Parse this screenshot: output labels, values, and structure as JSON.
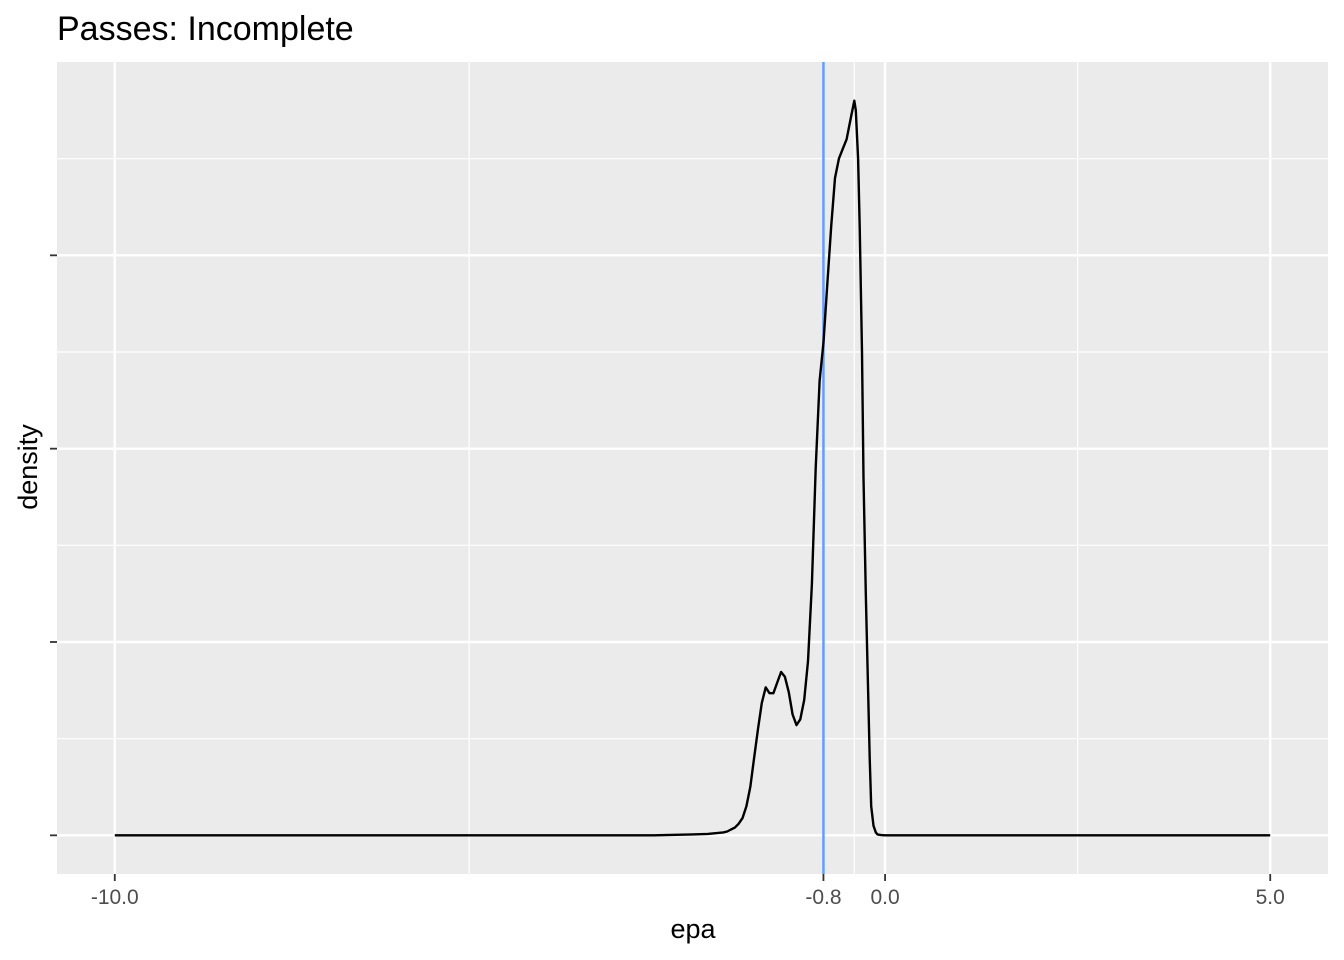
{
  "chart_data": {
    "type": "area",
    "title": "Passes: Incomplete",
    "xlabel": "epa",
    "ylabel": "density",
    "x_ticks": [
      {
        "value": -10.0,
        "label": "-10.0"
      },
      {
        "value": -0.8,
        "label": "-0.8"
      },
      {
        "value": 0.0,
        "label": "0.0"
      },
      {
        "value": 5.0,
        "label": "5.0"
      }
    ],
    "x_gridlines": [
      -10.0,
      -0.8,
      0.0,
      5.0
    ],
    "x_minor_gridlines": [
      -5.4,
      -0.4,
      2.5
    ],
    "xlim": [
      -10.75,
      5.75
    ],
    "ylim": [
      -0.04,
      0.8
    ],
    "y_gridlines": [
      0.0,
      0.2,
      0.4,
      0.6
    ],
    "y_minor_gridlines": [
      0.1,
      0.3,
      0.5,
      0.7
    ],
    "vline": {
      "x": -0.8,
      "color": "#619cff"
    },
    "grid": true,
    "panel_background": "#ebebeb",
    "line_color": "#000000",
    "series": [
      {
        "x": [
          -10.0,
          -7.0,
          -5.0,
          -4.0,
          -3.5,
          -3.0,
          -2.5,
          -2.3,
          -2.1,
          -2.05,
          -2.0,
          -1.95,
          -1.9,
          -1.85,
          -1.8,
          -1.75,
          -1.7,
          -1.65,
          -1.6,
          -1.55,
          -1.5,
          -1.45,
          -1.4,
          -1.35,
          -1.3,
          -1.25,
          -1.2,
          -1.15,
          -1.1,
          -1.05,
          -1.0,
          -0.95,
          -0.9,
          -0.85,
          -0.8,
          -0.75,
          -0.7,
          -0.65,
          -0.6,
          -0.55,
          -0.5,
          -0.45,
          -0.4,
          -0.38,
          -0.35,
          -0.33,
          -0.3,
          -0.28,
          -0.25,
          -0.22,
          -0.2,
          -0.18,
          -0.15,
          -0.12,
          -0.1,
          -0.05,
          0.0,
          0.5,
          1.0,
          2.0,
          3.0,
          4.0,
          5.0
        ],
        "y": [
          0.0,
          0.0,
          0.0,
          0.0,
          0.0,
          0.0,
          0.001,
          0.0015,
          0.003,
          0.004,
          0.006,
          0.008,
          0.012,
          0.018,
          0.03,
          0.05,
          0.08,
          0.11,
          0.137,
          0.153,
          0.147,
          0.147,
          0.158,
          0.169,
          0.164,
          0.148,
          0.125,
          0.114,
          0.12,
          0.14,
          0.18,
          0.26,
          0.38,
          0.47,
          0.51,
          0.57,
          0.63,
          0.68,
          0.7,
          0.71,
          0.72,
          0.74,
          0.76,
          0.75,
          0.7,
          0.63,
          0.5,
          0.37,
          0.25,
          0.15,
          0.08,
          0.03,
          0.01,
          0.003,
          0.001,
          0.0002,
          0.0,
          0.0,
          0.0,
          0.0,
          0.0,
          0.0,
          0.0
        ]
      }
    ]
  }
}
